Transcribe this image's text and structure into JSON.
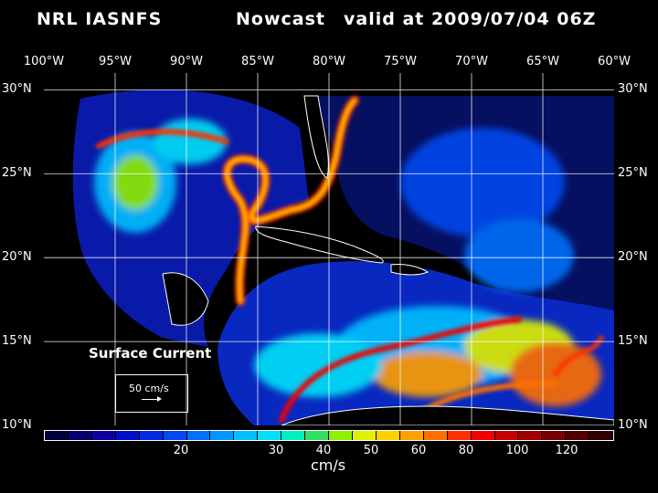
{
  "title": {
    "model": "NRL IASNFS",
    "kind": "Nowcast",
    "valid": "valid at 2009/07/04 06Z"
  },
  "lon_labels": [
    "100°W",
    "95°W",
    "90°W",
    "85°W",
    "80°W",
    "75°W",
    "70°W",
    "65°W",
    "60°W"
  ],
  "lat_labels": [
    "30°N",
    "25°N",
    "20°N",
    "15°N",
    "10°N"
  ],
  "map": {
    "field_label": "Surface Current",
    "legend_vector": "50 cm/s",
    "lon_range": [
      -100,
      -60
    ],
    "lat_range": [
      10,
      31
    ]
  },
  "colorbar": {
    "units": "cm/s",
    "colors": [
      "#04003a",
      "#08006e",
      "#0c00a0",
      "#0010c8",
      "#0028e0",
      "#0048f0",
      "#0070f8",
      "#0098ff",
      "#00c0ff",
      "#00e0f8",
      "#00f0c0",
      "#30e060",
      "#90f000",
      "#e0f000",
      "#ffd000",
      "#ffa000",
      "#ff7000",
      "#ff3000",
      "#f00000",
      "#c80000",
      "#a00000",
      "#780000",
      "#500000",
      "#300000"
    ],
    "ticks": [
      "20",
      "30",
      "40",
      "50",
      "60",
      "80",
      "100",
      "120"
    ]
  }
}
